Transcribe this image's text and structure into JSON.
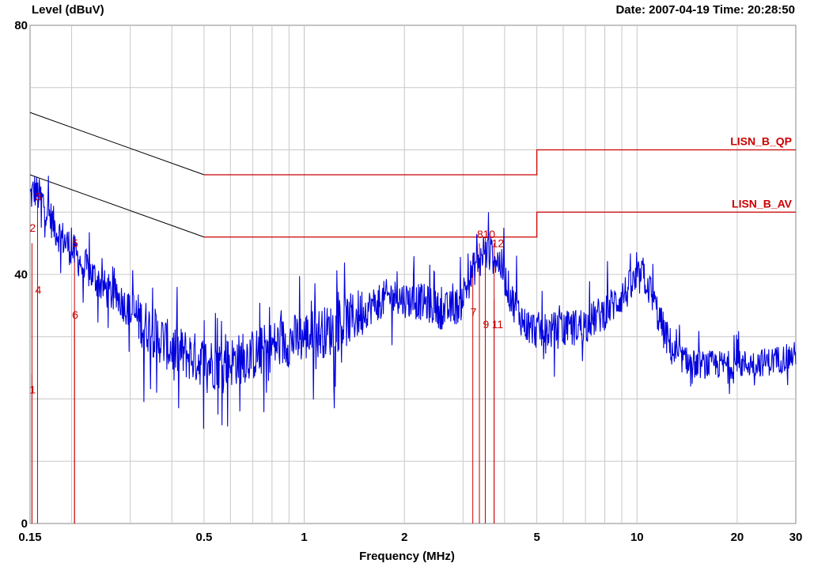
{
  "chart_data": {
    "type": "line",
    "xscale": "log",
    "xlim": [
      0.15,
      30
    ],
    "ylim": [
      0,
      80
    ],
    "ylabel": "Level (dBuV)",
    "xlabel": "Frequency (MHz)",
    "date_text": "Date: 2007-04-19  Time: 20:28:50",
    "grid": true,
    "x_ticks": [
      {
        "v": 0.15,
        "label": "0.15"
      },
      {
        "v": 0.5,
        "label": "0.5"
      },
      {
        "v": 1,
        "label": "1"
      },
      {
        "v": 2,
        "label": "2"
      },
      {
        "v": 5,
        "label": "5"
      },
      {
        "v": 10,
        "label": "10"
      },
      {
        "v": 20,
        "label": "20"
      },
      {
        "v": 30,
        "label": "30"
      }
    ],
    "y_ticks": [
      {
        "v": 0,
        "label": "0"
      },
      {
        "v": 40,
        "label": "40"
      },
      {
        "v": 80,
        "label": "80"
      }
    ],
    "limit_lines": [
      {
        "name": "LISN_B_QP",
        "color": "#cc0000",
        "points": [
          [
            0.15,
            66
          ],
          [
            0.5,
            56
          ],
          [
            5,
            56
          ],
          [
            5,
            60
          ],
          [
            30,
            60
          ]
        ]
      },
      {
        "name": "LISN_B_AV",
        "color": "#cc0000",
        "points": [
          [
            0.15,
            56
          ],
          [
            0.5,
            46
          ],
          [
            5,
            46
          ],
          [
            5,
            50
          ],
          [
            30,
            50
          ]
        ]
      }
    ],
    "trace_color": "#0000dd",
    "trace_anchors": [
      [
        0.15,
        52.5
      ],
      [
        0.155,
        53.5
      ],
      [
        0.165,
        51.5
      ],
      [
        0.18,
        47
      ],
      [
        0.2,
        44
      ],
      [
        0.21,
        42.5
      ],
      [
        0.23,
        40
      ],
      [
        0.26,
        37
      ],
      [
        0.28,
        36
      ],
      [
        0.3,
        34
      ],
      [
        0.34,
        31.5
      ],
      [
        0.4,
        28
      ],
      [
        0.45,
        27
      ],
      [
        0.5,
        26
      ],
      [
        0.55,
        25.5
      ],
      [
        0.6,
        26
      ],
      [
        0.7,
        27
      ],
      [
        0.8,
        28.5
      ],
      [
        1,
        30
      ],
      [
        1.2,
        31
      ],
      [
        1.4,
        33
      ],
      [
        1.6,
        35
      ],
      [
        1.8,
        36.5
      ],
      [
        2,
        36
      ],
      [
        2.3,
        35.5
      ],
      [
        2.6,
        34
      ],
      [
        2.9,
        35
      ],
      [
        3.1,
        38.5
      ],
      [
        3.3,
        42
      ],
      [
        3.5,
        43.5
      ],
      [
        3.7,
        43
      ],
      [
        3.9,
        41.5
      ],
      [
        4.2,
        36
      ],
      [
        4.6,
        32
      ],
      [
        5,
        31
      ],
      [
        6,
        31
      ],
      [
        7,
        32
      ],
      [
        8,
        34
      ],
      [
        9,
        36.5
      ],
      [
        10,
        39
      ],
      [
        10.5,
        40
      ],
      [
        11,
        37
      ],
      [
        12,
        31
      ],
      [
        13,
        27
      ],
      [
        15,
        25.5
      ],
      [
        20,
        25.5
      ],
      [
        25,
        26
      ],
      [
        30,
        27
      ]
    ],
    "trace_spikes": [
      [
        0.162,
        47.5
      ],
      [
        0.2,
        47.5
      ],
      [
        0.215,
        40
      ],
      [
        0.33,
        19.5
      ],
      [
        0.36,
        21
      ],
      [
        0.42,
        18.5
      ],
      [
        0.55,
        17.5
      ],
      [
        0.64,
        18
      ],
      [
        0.77,
        21
      ],
      [
        1.23,
        18.5
      ],
      [
        1.9,
        40.5
      ],
      [
        2.45,
        40.5
      ],
      [
        3.3,
        46.5
      ],
      [
        3.45,
        46
      ],
      [
        3.65,
        45.5
      ],
      [
        4.35,
        43
      ],
      [
        4.75,
        29
      ],
      [
        10.4,
        41.5
      ],
      [
        14.5,
        22
      ],
      [
        19.5,
        22.5
      ]
    ],
    "markers": [
      {
        "label": "1",
        "x": 0.152,
        "level": 24,
        "text_y": 21.5
      },
      {
        "label": "2",
        "x": 0.152,
        "level": 45,
        "text_y": 47.5
      },
      {
        "label": "3",
        "x": 0.158,
        "level": 52,
        "text_y": 52.5
      },
      {
        "label": "4",
        "x": 0.158,
        "level": 36,
        "text_y": 37.5
      },
      {
        "label": "5",
        "x": 0.204,
        "level": 45,
        "text_y": 45
      },
      {
        "label": "6",
        "x": 0.204,
        "level": 33,
        "text_y": 33.5
      },
      {
        "label": "7",
        "x": 3.21,
        "level": 43,
        "text_y": 34
      },
      {
        "label": "8",
        "x": 3.36,
        "level": 45,
        "text_y": 46.5
      },
      {
        "label": "9",
        "x": 3.5,
        "level": 36,
        "text_y": 32
      },
      {
        "label": "10",
        "x": 3.5,
        "level": 46,
        "text_y": 46.5
      },
      {
        "label": "11",
        "x": 3.72,
        "level": 36,
        "text_y": 32
      },
      {
        "label": "12",
        "x": 3.72,
        "level": 45,
        "text_y": 45
      }
    ]
  }
}
